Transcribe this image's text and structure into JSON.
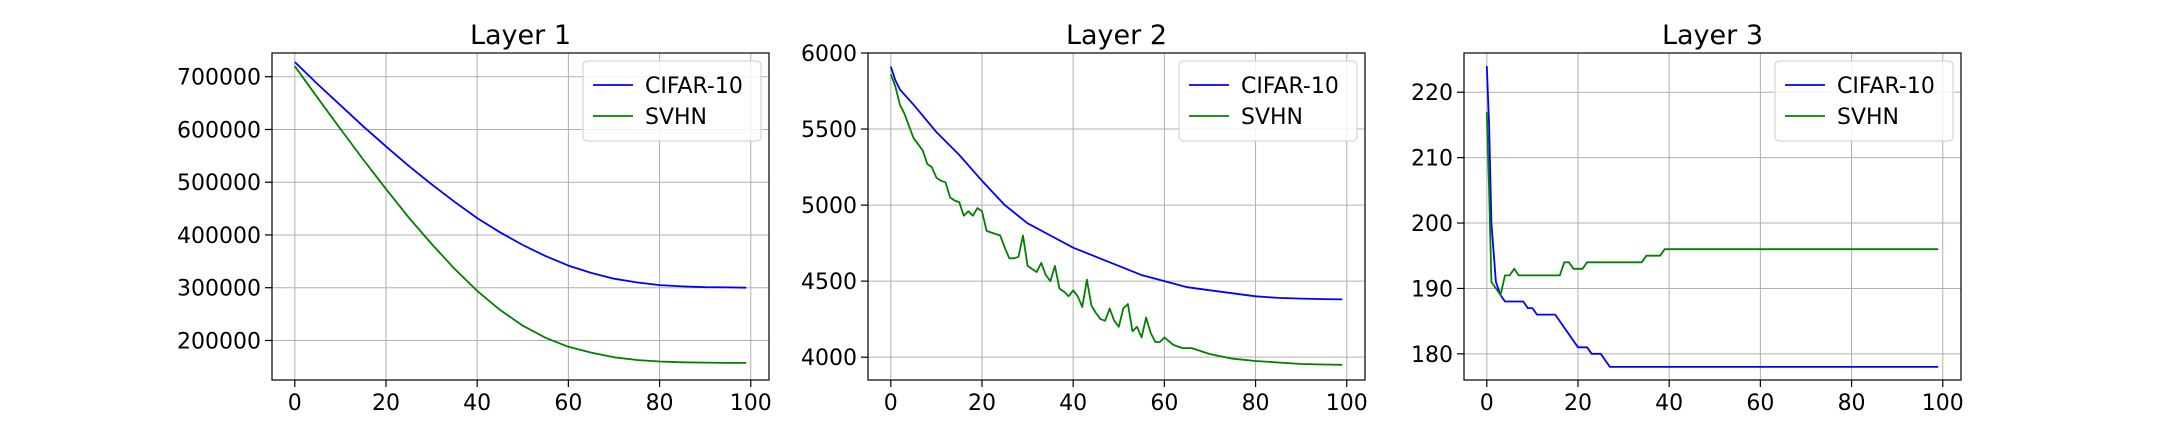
{
  "chart_data": [
    {
      "type": "line",
      "title": "Layer 1",
      "xlabel": "",
      "ylabel": "",
      "xlim": [
        -5,
        104
      ],
      "ylim": [
        125000,
        745000
      ],
      "xticks": [
        0,
        20,
        40,
        60,
        80,
        100
      ],
      "xtick_labels": [
        "0",
        "20",
        "40",
        "60",
        "80",
        "100"
      ],
      "yticks": [
        200000,
        300000,
        400000,
        500000,
        600000,
        700000
      ],
      "ytick_labels": [
        "200000",
        "300000",
        "400000",
        "500000",
        "600000",
        "700000"
      ],
      "grid": true,
      "legend_position": "top-right",
      "x": [
        0,
        5,
        10,
        15,
        20,
        25,
        30,
        35,
        40,
        45,
        50,
        55,
        60,
        65,
        70,
        75,
        80,
        85,
        90,
        95,
        99
      ],
      "series": [
        {
          "name": "CIFAR-10",
          "color": "#0000ff",
          "values": [
            728000,
            686000,
            646000,
            606000,
            568000,
            531000,
            496000,
            463000,
            432000,
            405000,
            381000,
            360000,
            342000,
            328000,
            317000,
            310000,
            305000,
            302500,
            301000,
            300500,
            300000
          ]
        },
        {
          "name": "SVHN",
          "color": "#008000",
          "values": [
            720000,
            660000,
            601000,
            543000,
            487000,
            433000,
            383000,
            336000,
            294000,
            258000,
            228000,
            205000,
            188000,
            177000,
            168000,
            163000,
            160000,
            158500,
            158000,
            157500,
            157500
          ]
        }
      ]
    },
    {
      "type": "line",
      "title": "Layer 2",
      "xlabel": "",
      "ylabel": "",
      "xlim": [
        -5,
        104
      ],
      "ylim": [
        3850,
        6000
      ],
      "xticks": [
        0,
        20,
        40,
        60,
        80,
        100
      ],
      "xtick_labels": [
        "0",
        "20",
        "40",
        "60",
        "80",
        "100"
      ],
      "yticks": [
        4000,
        4500,
        5000,
        5500,
        6000
      ],
      "ytick_labels": [
        "4000",
        "4500",
        "5000",
        "5500",
        "6000"
      ],
      "grid": true,
      "legend_position": "top-right",
      "series": [
        {
          "name": "CIFAR-10",
          "color": "#0000ff",
          "x": [
            0,
            1,
            2,
            5,
            10,
            15,
            20,
            25,
            30,
            35,
            40,
            45,
            50,
            55,
            60,
            65,
            70,
            75,
            80,
            85,
            90,
            95,
            99
          ],
          "values": [
            5910,
            5820,
            5760,
            5660,
            5480,
            5330,
            5160,
            5000,
            4880,
            4800,
            4720,
            4660,
            4600,
            4540,
            4500,
            4460,
            4440,
            4420,
            4400,
            4390,
            4385,
            4382,
            4380
          ]
        },
        {
          "name": "SVHN",
          "color": "#008000",
          "x": [
            0,
            1,
            2,
            3,
            4,
            5,
            6,
            7,
            8,
            9,
            10,
            11,
            12,
            13,
            14,
            15,
            16,
            17,
            18,
            19,
            20,
            21,
            22,
            23,
            24,
            25,
            26,
            27,
            28,
            29,
            30,
            31,
            32,
            33,
            34,
            35,
            36,
            37,
            38,
            39,
            40,
            41,
            42,
            43,
            44,
            45,
            46,
            47,
            48,
            49,
            50,
            51,
            52,
            53,
            54,
            55,
            56,
            57,
            58,
            59,
            60,
            62,
            64,
            66,
            70,
            75,
            80,
            85,
            90,
            95,
            99
          ],
          "values": [
            5860,
            5780,
            5660,
            5600,
            5520,
            5440,
            5400,
            5360,
            5270,
            5250,
            5180,
            5160,
            5150,
            5050,
            5030,
            5020,
            4930,
            4960,
            4930,
            4980,
            4960,
            4830,
            4820,
            4810,
            4800,
            4720,
            4650,
            4650,
            4660,
            4800,
            4600,
            4580,
            4560,
            4620,
            4540,
            4500,
            4600,
            4450,
            4430,
            4400,
            4440,
            4400,
            4330,
            4510,
            4340,
            4290,
            4250,
            4240,
            4320,
            4240,
            4200,
            4320,
            4350,
            4170,
            4200,
            4130,
            4260,
            4160,
            4100,
            4100,
            4130,
            4080,
            4060,
            4060,
            4020,
            3990,
            3975,
            3965,
            3955,
            3952,
            3950
          ]
        }
      ]
    },
    {
      "type": "line",
      "title": "Layer 3",
      "xlabel": "",
      "ylabel": "",
      "xlim": [
        -5,
        104
      ],
      "ylim": [
        176,
        226
      ],
      "xticks": [
        0,
        20,
        40,
        60,
        80,
        100
      ],
      "xtick_labels": [
        "0",
        "20",
        "40",
        "60",
        "80",
        "100"
      ],
      "yticks": [
        180,
        190,
        200,
        210,
        220
      ],
      "ytick_labels": [
        "180",
        "190",
        "200",
        "210",
        "220"
      ],
      "grid": true,
      "legend_position": "top-right",
      "series": [
        {
          "name": "CIFAR-10",
          "color": "#0000ff",
          "x": [
            0,
            0.5,
            1,
            2,
            3,
            4,
            5,
            6,
            7,
            8,
            9,
            10,
            11,
            12,
            13,
            14,
            15,
            16,
            17,
            18,
            19,
            20,
            21,
            22,
            23,
            24,
            25,
            26,
            27,
            40,
            60,
            80,
            99
          ],
          "values": [
            224,
            215,
            200,
            191,
            189,
            188,
            188,
            188,
            188,
            188,
            187,
            187,
            186,
            186,
            186,
            186,
            186,
            185,
            184,
            183,
            182,
            181,
            181,
            181,
            180,
            180,
            180,
            179,
            178,
            178,
            178,
            178,
            178
          ]
        },
        {
          "name": "SVHN",
          "color": "#008000",
          "x": [
            0,
            0.5,
            1,
            2,
            3,
            4,
            5,
            6,
            7,
            8,
            10,
            12,
            14,
            16,
            17,
            18,
            19,
            20,
            21,
            22,
            23,
            25,
            30,
            33,
            34,
            35,
            36,
            37,
            38,
            39,
            40,
            60,
            80,
            99
          ],
          "values": [
            217,
            205,
            191,
            190,
            189,
            192,
            192,
            193,
            192,
            192,
            192,
            192,
            192,
            192,
            194,
            194,
            193,
            193,
            193,
            194,
            194,
            194,
            194,
            194,
            194,
            195,
            195,
            195,
            195,
            196,
            196,
            196,
            196,
            196
          ]
        }
      ]
    }
  ]
}
